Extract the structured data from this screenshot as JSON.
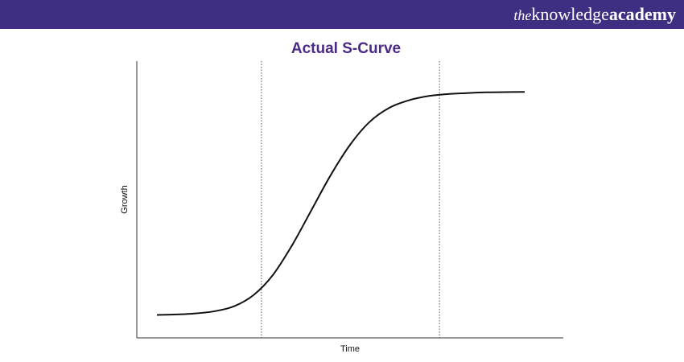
{
  "header": {
    "brand_prefix": "the",
    "brand_main": "knowledge",
    "brand_bold": "academy",
    "background_color": "#3f2e82"
  },
  "chart_data": {
    "type": "line",
    "title": "Actual S-Curve",
    "xlabel": "Time",
    "ylabel": "Growth",
    "title_color": "#4a2a86",
    "line_color": "#111111",
    "xlim": [
      0,
      100
    ],
    "ylim": [
      0,
      100
    ],
    "grid": false,
    "legend": "none",
    "series": [
      {
        "values_x": [
          0,
          5,
          10,
          15,
          20,
          25,
          30,
          35,
          40,
          45,
          50,
          55,
          60,
          65,
          70,
          75,
          80,
          85,
          90,
          95
        ],
        "values_y": [
          4,
          4.2,
          4.6,
          5.5,
          7.5,
          12,
          20,
          32,
          46,
          60,
          72,
          81,
          86.5,
          89.5,
          91.2,
          92,
          92.4,
          92.7,
          92.8,
          92.9
        ]
      }
    ],
    "reference_lines_x": [
      27,
      73
    ]
  }
}
